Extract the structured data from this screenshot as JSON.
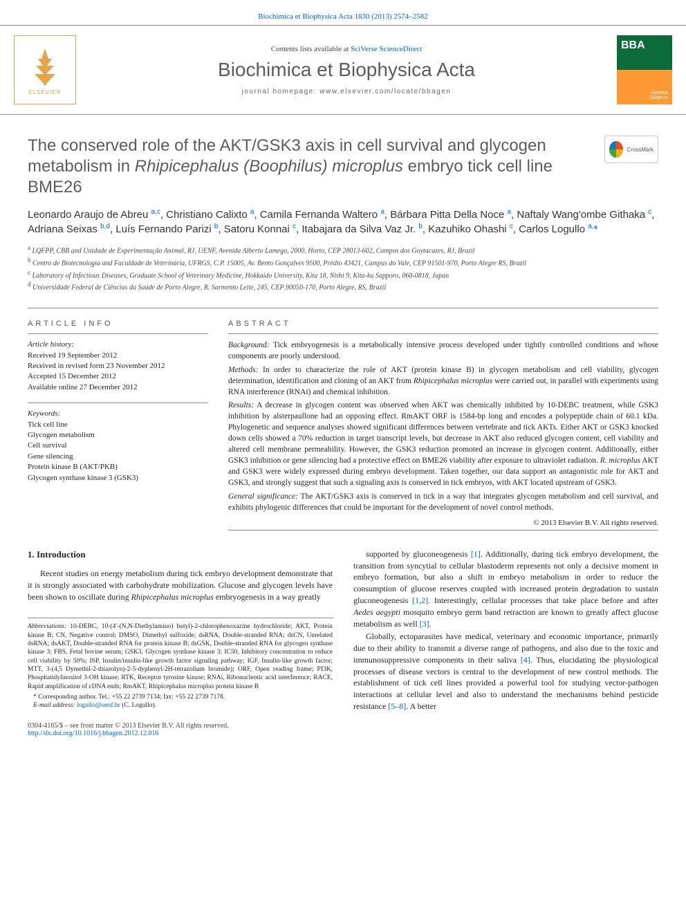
{
  "header": {
    "top_link_text": "Biochimica et Biophysica Acta 1830 (2013) 2574–2582",
    "top_link_color": "#0066cc",
    "contents_prefix": "Contents lists available at ",
    "contents_link": "SciVerse ScienceDirect",
    "journal_name": "Biochimica et Biophysica Acta",
    "homepage_line": "journal homepage: www.elsevier.com/locate/bbagen",
    "elsevier_label": "ELSEVIER",
    "cover_bba": "BBA",
    "cover_sub": "General\nSubjects"
  },
  "article": {
    "title": "The conserved role of the AKT/GSK3 axis in cell survival and glycogen metabolism in Rhipicephalus (Boophilus) microplus embryo tick cell line BME26",
    "crossmark_label": "CrossMark",
    "authors_html": "Leonardo Araujo de Abreu <sup>a,c</sup>, Christiano Calixto <sup>a</sup>, Camila Fernanda Waltero <sup>a</sup>, Bárbara Pitta Della Noce <sup>a</sup>, Naftaly Wang'ombe Githaka <sup>c</sup>, Adriana Seixas <sup>b,d</sup>, Luís Fernando Parizi <sup>b</sup>, Satoru Konnai <sup>c</sup>, Itabajara da Silva Vaz Jr. <sup>b</sup>, Kazuhiko Ohashi <sup>c</sup>, Carlos Logullo <sup>a,</sup><span class=\"ast\">*</span>",
    "affiliations": [
      {
        "sup": "a",
        "text": "LQFPP, CBB and Unidade de Experimentação Animal, RJ, UENF, Avenida Alberto Lamego, 2000, Horto, CEP 28013-602, Campos dos Goytacazes, RJ, Brazil"
      },
      {
        "sup": "b",
        "text": "Centro de Biotecnologia and Faculdade de Veterinária, UFRGS, C.P. 15005, Av. Bento Gonçalves 9500, Prédio 43421, Campus do Vale, CEP 91501-970, Porto Alegre RS, Brazil"
      },
      {
        "sup": "c",
        "text": "Laboratory of Infectious Diseases, Graduate School of Veterinary Medicine, Hokkaido University, Kita 18, Nishi 9, Kita-ku Sapporo, 060-0818, Japan"
      },
      {
        "sup": "d",
        "text": "Universidade Federal de Ciências da Saúde de Porto Alegre, R. Sarmento Leite, 245, CEP 90050-170, Porto Alegre, RS, Brazil"
      }
    ]
  },
  "article_info": {
    "heading": "ARTICLE INFO",
    "history_label": "Article history:",
    "history": [
      "Received 19 September 2012",
      "Received in revised form 23 November 2012",
      "Accepted 15 December 2012",
      "Available online 27 December 2012"
    ],
    "keywords_label": "Keywords:",
    "keywords": [
      "Tick cell line",
      "Glycogen metabolism",
      "Cell survival",
      "Gene silencing",
      "Protein kinase B (AKT/PKB)",
      "Glycogen synthase kinase 3 (GSK3)"
    ]
  },
  "abstract": {
    "heading": "ABSTRACT",
    "paragraphs": [
      {
        "label": "Background:",
        "text": " Tick embryogenesis is a metabolically intensive process developed under tightly controlled conditions and whose components are poorly understood."
      },
      {
        "label": "Methods:",
        "text": " In order to characterize the role of AKT (protein kinase B) in glycogen metabolism and cell viability, glycogen determination, identification and cloning of an AKT from Rhipicephalus microplus were carried out, in parallel with experiments using RNA interference (RNAi) and chemical inhibition."
      },
      {
        "label": "Results:",
        "text": " A decrease in glycogen content was observed when AKT was chemically inhibited by 10-DEBC treatment, while GSK3 inhibition by alsterpaullone had an opposing effect. RmAKT ORF is 1584-bp long and encodes a polypeptide chain of 60.1 kDa. Phylogenetic and sequence analyses showed significant differences between vertebrate and tick AKTs. Either AKT or GSK3 knocked down cells showed a 70% reduction in target transcript levels, but decrease in AKT also reduced glycogen content, cell viability and altered cell membrane permeability. However, the GSK3 reduction promoted an increase in glycogen content. Additionally, either GSK3 inhibition or gene silencing had a protective effect on BME26 viability after exposure to ultraviolet radiation. R. microplus AKT and GSK3 were widely expressed during embryo development. Taken together, our data support an antagonistic role for AKT and GSK3, and strongly suggest that such a signaling axis is conserved in tick embryos, with AKT located upstream of GSK3."
      },
      {
        "label": "General significance:",
        "text": " The AKT/GSK3 axis is conserved in tick in a way that integrates glycogen metabolism and cell survival, and exhibits phylogenic differences that could be important for the development of novel control methods."
      }
    ],
    "copyright": "© 2013 Elsevier B.V. All rights reserved."
  },
  "body": {
    "intro_heading": "1. Introduction",
    "left_paras": [
      "Recent studies on energy metabolism during tick embryo development demonstrate that it is strongly associated with carbohydrate mobilization. Glucose and glycogen levels have been shown to oscillate during Rhipicephalus microplus embryogenesis in a way greatly"
    ],
    "right_paras": [
      "supported by gluconeogenesis [1]. Additionally, during tick embryo development, the transition from syncytial to cellular blastoderm represents not only a decisive moment in embryo formation, but also a shift in embryo metabolism in order to reduce the consumption of glucose reserves coupled with increased protein degradation to sustain gluconeogenesis [1,2]. Interestingly, cellular processes that take place before and after Aedes aegypti mosquito embryo germ band retraction are known to greatly affect glucose metabolism as well [3].",
      "Globally, ectoparasites have medical, veterinary and economic importance, primarily due to their ability to transmit a diverse range of pathogens, and also due to the toxic and immunosuppressive components in their saliva [4]. Thus, elucidating the physiological processes of disease vectors is central to the development of new control methods. The establishment of tick cell lines provided a powerful tool for studying vector-pathogen interactions at cellular level and also to understand the mechanisms behind pesticide resistance [5–8]. A better"
    ],
    "ref_links": [
      "[1]",
      "[1,2]",
      "[3]",
      "[4]",
      "[5–8]"
    ]
  },
  "footnotes": {
    "abbrev_label": "Abbreviations:",
    "abbrev_text": " 10-DEBC, 10-(4′-(N,N-Diethylamino) butyl)-2-chlorophenoxazine hydrochloride; AKT, Protein kinase B; CN, Negative control; DMSO, Dimethyl sulfoxide; dsRNA, Double-stranded RNA; dsCN, Unrelated dsRNA; dsAKT, Double-stranded RNA for protein kinase B; dsGSK, Double-stranded RNA for glycogen synthase kinase 3; FBS, Fetal bovine serum; GSK3, Glycogen synthase kinase 3; IC50, Inhibitory concentration to reduce cell viability by 50%; ISP, Insulin/insulin-like growth factor signaling pathway; IGF, Insulin-like growth factor; MTT, 3-(4,5 Dymethil-2-thiazolyn)-2-5-dyphenyl-2H-tetrazolium bromide); ORF, Open reading frame; PI3K, Phosphatidylinositol 3-OH kinase; RTK, Receptor tyrosine kinase; RNAi, Ribonucleotic acid interference; RACE, Rapid amplification of cDNA ends; RmAKT, Rhipicephalus microplus protein kinase B",
    "corr_label": "* Corresponding author. Tel.: +55 22 2739 7134; fax: +55 22 2739 7178.",
    "email_label": "E-mail address:",
    "email": "logullo@uenf.br",
    "email_suffix": " (C. Logullo)."
  },
  "bottom": {
    "issn_line": "0304-4165/$ – see front matter © 2013 Elsevier B.V. All rights reserved.",
    "doi": "http://dx.doi.org/10.1016/j.bbagen.2012.12.016"
  },
  "colors": {
    "link": "#0066cc",
    "heading_gray": "#5c5c5c",
    "rule": "#888888",
    "elsevier_orange": "#e5a54a",
    "cover_green": "#0b6b3a",
    "cover_orange": "#ff9933"
  }
}
